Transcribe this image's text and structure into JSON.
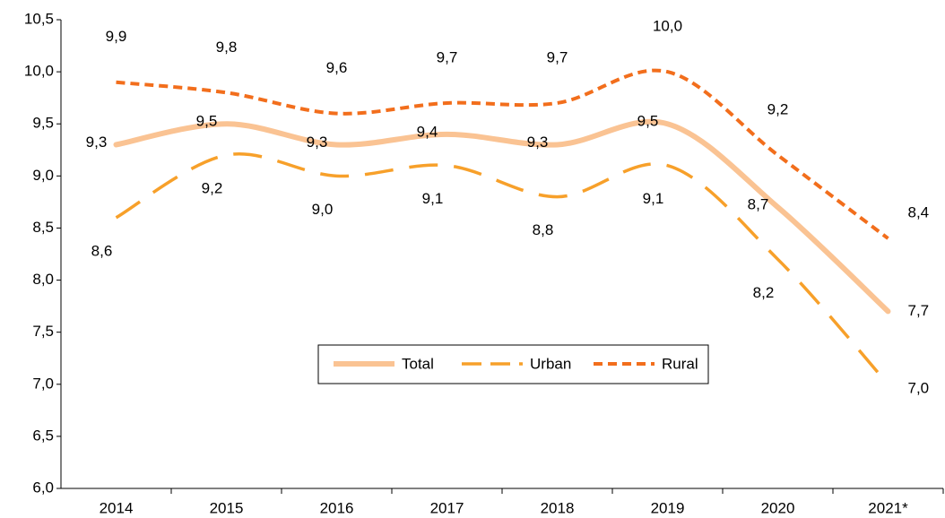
{
  "chart_data": {
    "type": "line",
    "categories": [
      "2014",
      "2015",
      "2016",
      "2017",
      "2018",
      "2019",
      "2020",
      "2021*"
    ],
    "series": [
      {
        "name": "Total",
        "color": "#fac393",
        "style": "solid",
        "values": [
          9.3,
          9.5,
          9.3,
          9.4,
          9.3,
          9.5,
          8.7,
          7.7
        ],
        "value_labels": [
          "9,3",
          "9,5",
          "9,3",
          "9,4",
          "9,3",
          "9,5",
          "8,7",
          "7,7"
        ]
      },
      {
        "name": "Urban",
        "color": "#f7a02a",
        "style": "dashed",
        "values": [
          8.6,
          9.2,
          9.0,
          9.1,
          8.8,
          9.1,
          8.2,
          7.0
        ],
        "value_labels": [
          "8,6",
          "9,2",
          "9,0",
          "9,1",
          "8,8",
          "9,1",
          "8,2",
          "7,0"
        ]
      },
      {
        "name": "Rural",
        "color": "#f26e1c",
        "style": "dotted",
        "values": [
          9.9,
          9.8,
          9.6,
          9.7,
          9.7,
          10.0,
          9.2,
          8.4
        ],
        "value_labels": [
          "9,9",
          "9,8",
          "9,6",
          "9,7",
          "9,7",
          "10,0",
          "9,2",
          "8,4"
        ]
      }
    ],
    "ylim": [
      6.0,
      10.5
    ],
    "yticks": [
      {
        "value": 6.0,
        "label": "6,0"
      },
      {
        "value": 6.5,
        "label": "6,5"
      },
      {
        "value": 7.0,
        "label": "7,0"
      },
      {
        "value": 7.5,
        "label": "7,5"
      },
      {
        "value": 8.0,
        "label": "8,0"
      },
      {
        "value": 8.5,
        "label": "8,5"
      },
      {
        "value": 9.0,
        "label": "9,0"
      },
      {
        "value": 9.5,
        "label": "9,5"
      },
      {
        "value": 10.0,
        "label": "10,0"
      },
      {
        "value": 10.5,
        "label": "10,5"
      }
    ],
    "grid": false,
    "legend": "center"
  }
}
